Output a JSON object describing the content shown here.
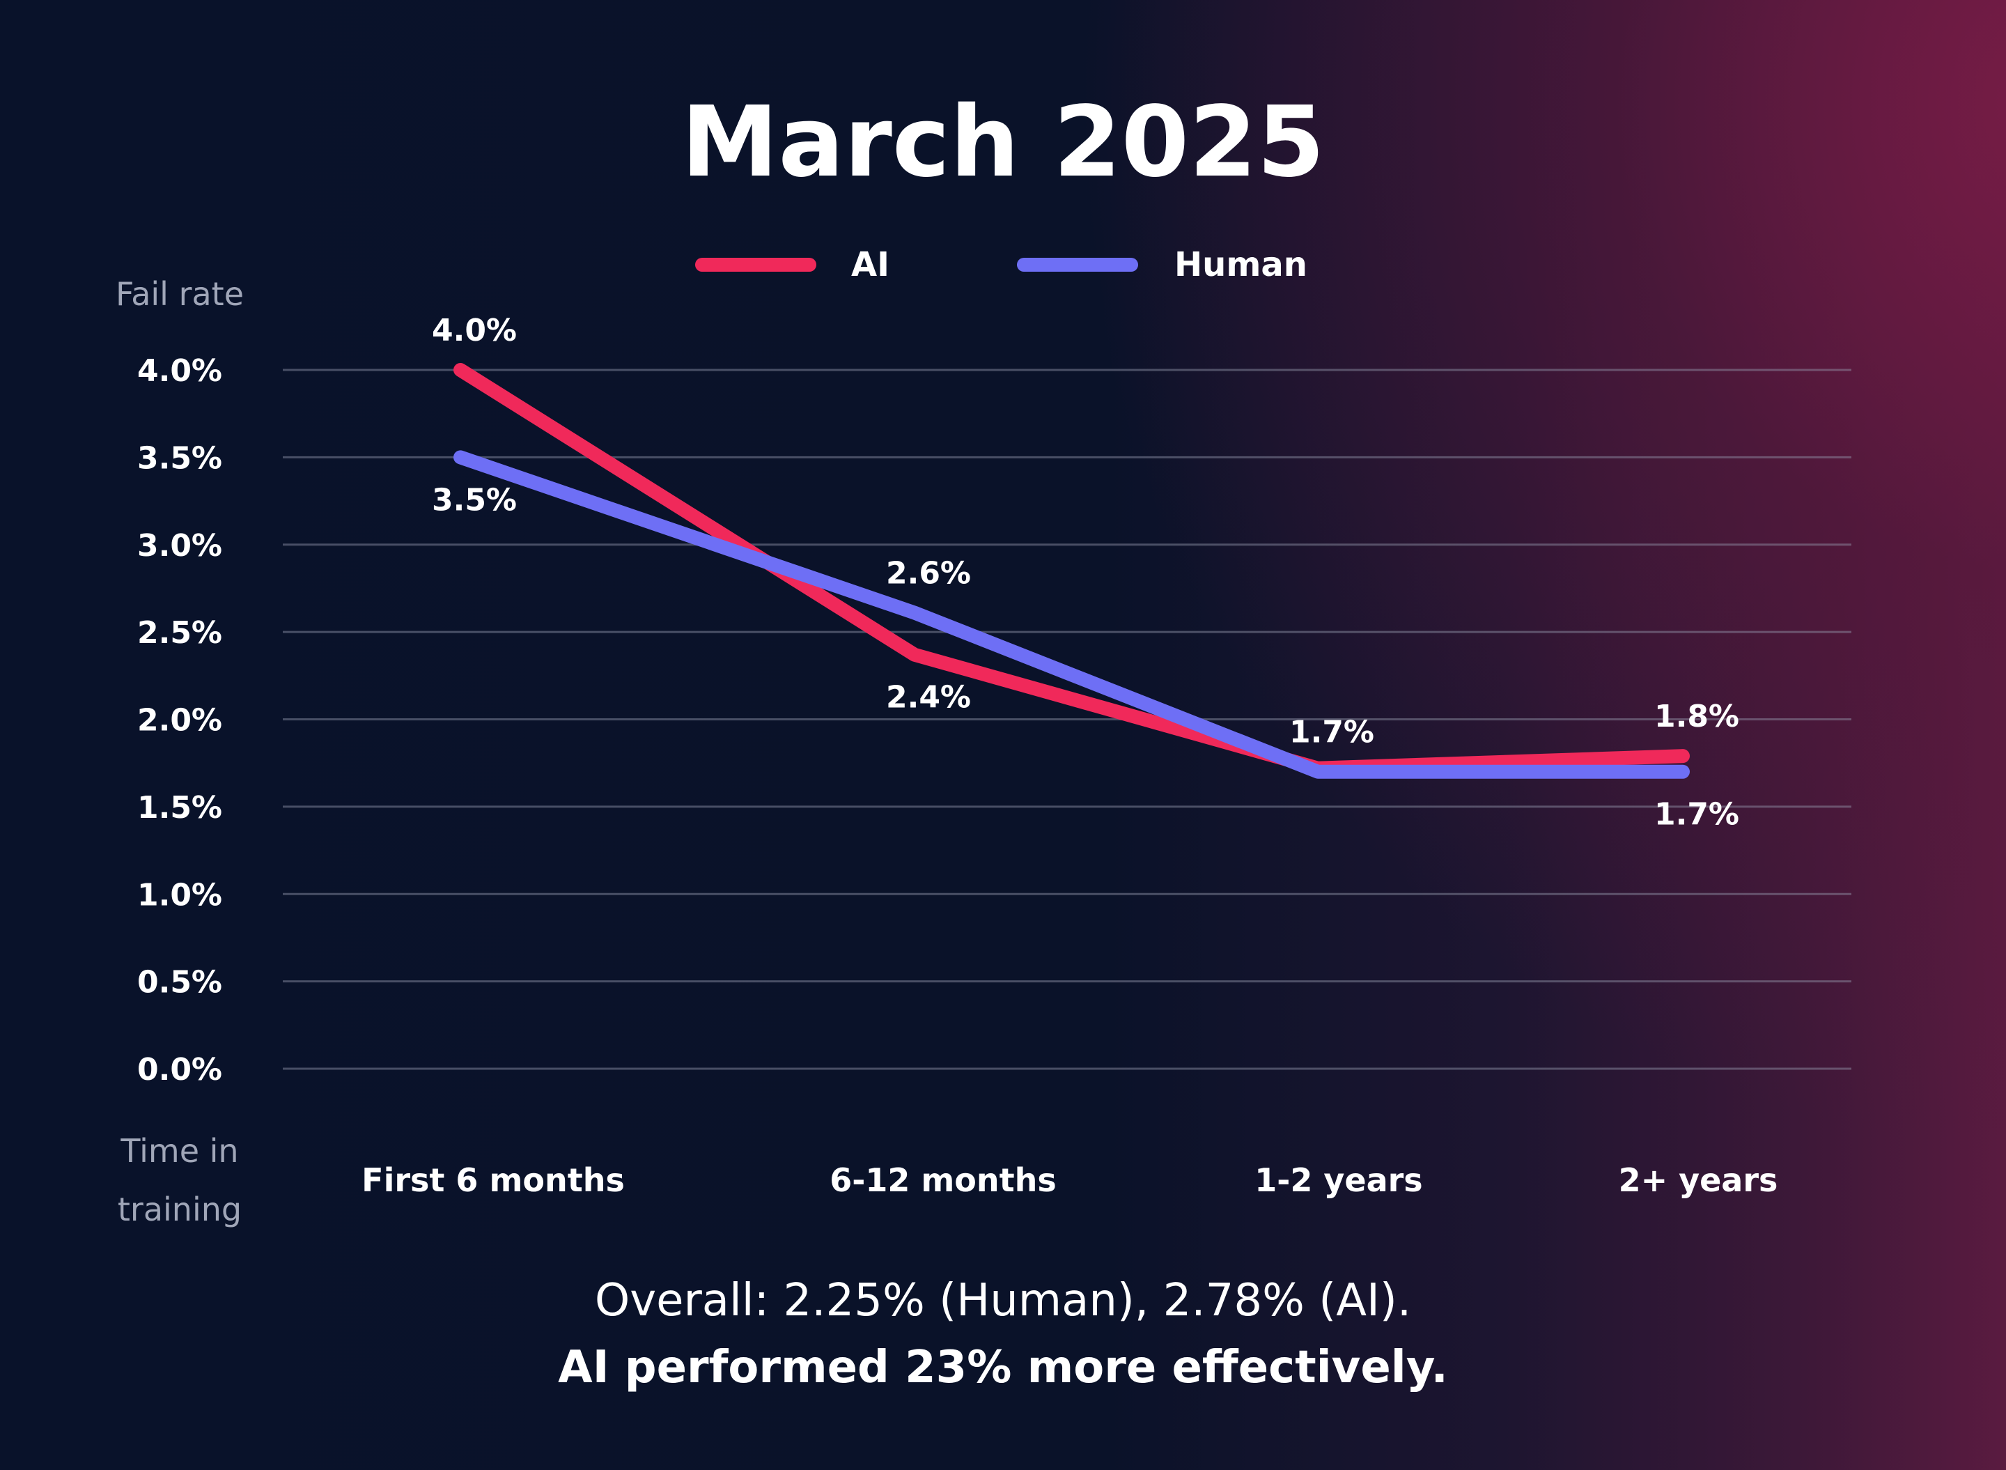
{
  "chart_data": {
    "type": "line",
    "title": "March 2025",
    "ylabel": "Fail rate",
    "xlabel": "Time in training",
    "xlabel_lines": [
      "Time in",
      "training"
    ],
    "categories": [
      "First 6 months",
      "6-12 months",
      "1-2 years",
      "2+ years"
    ],
    "ylim": [
      0,
      4.0
    ],
    "yticks": [
      "0.0%",
      "0.5%",
      "1.0%",
      "1.5%",
      "2.0%",
      "2.5%",
      "3.0%",
      "3.5%",
      "4.0%"
    ],
    "grid": true,
    "legend_placement": "top-center",
    "series": [
      {
        "name": "AI",
        "color": "#f0295a",
        "values": [
          4.0,
          2.37,
          1.72,
          1.79
        ],
        "labels": [
          "4.0%",
          "2.4%",
          "",
          "1.8%"
        ],
        "label_pos": [
          "above",
          "below",
          "above",
          "above"
        ]
      },
      {
        "name": "Human",
        "color": "#6e6ff5",
        "values": [
          3.5,
          2.61,
          1.7,
          1.7
        ],
        "labels": [
          "3.5%",
          "2.6%",
          "1.7%",
          "1.7%"
        ],
        "label_pos": [
          "below",
          "above",
          "above",
          "below"
        ]
      }
    ],
    "annotations": [
      "Overall: 2.25% (Human), 2.78% (AI).",
      "AI performed 23% more effectively."
    ]
  }
}
